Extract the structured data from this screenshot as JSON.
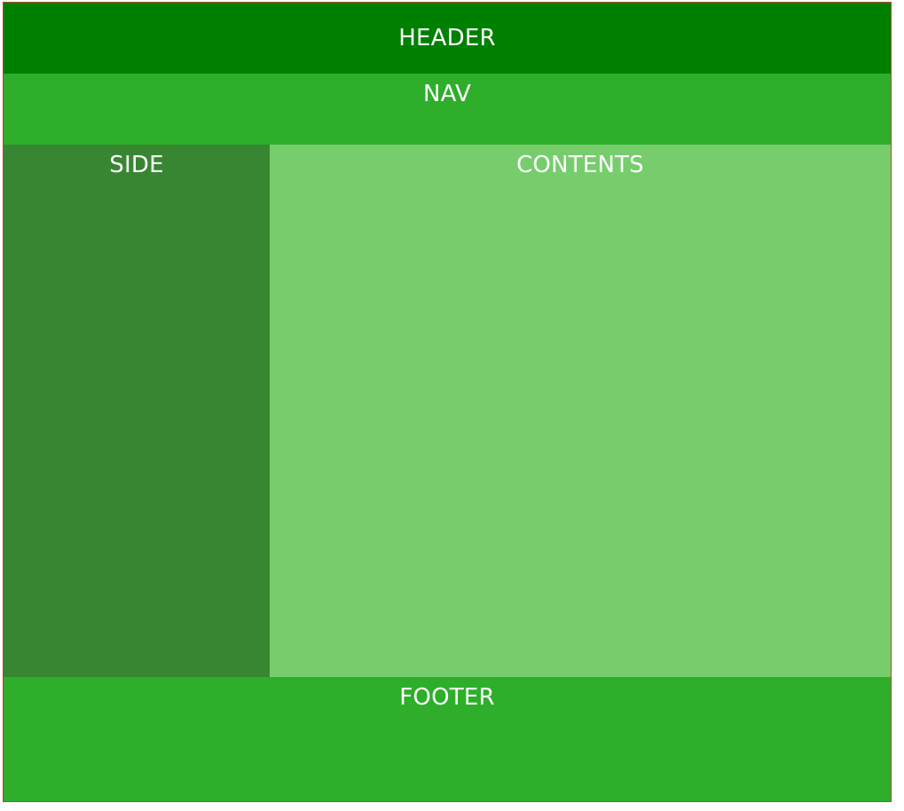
{
  "colors": {
    "header": "#008000",
    "nav": "#2eae2b",
    "side": "#388632",
    "contents": "#77cd6c",
    "footer": "#2eae2b",
    "border": "#b5492a",
    "text": "#ffffff"
  },
  "header": {
    "label": "HEADER"
  },
  "nav": {
    "label": "NAV"
  },
  "side": {
    "label": "SIDE"
  },
  "contents": {
    "label": "CONTENTS"
  },
  "footer": {
    "label": "FOOTER"
  }
}
